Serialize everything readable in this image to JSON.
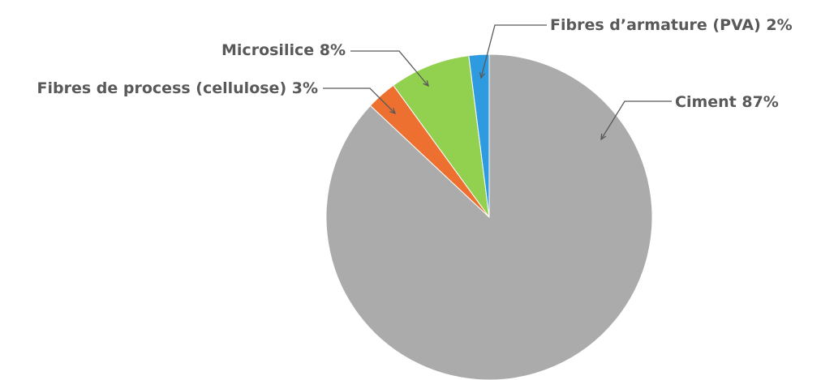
{
  "chart_data": {
    "type": "pie",
    "title": "",
    "slices": [
      {
        "name": "Ciment",
        "value": 87,
        "label": "Ciment 87%",
        "color": "#ABABAB"
      },
      {
        "name": "Fibres de process (cellulose)",
        "value": 3,
        "label": "Fibres de process (cellulose) 3%",
        "color": "#ED7031"
      },
      {
        "name": "Microsilice",
        "value": 8,
        "label": "Microsilice 8%",
        "color": "#92D050"
      },
      {
        "name": "Fibres d’armature (PVA)",
        "value": 2,
        "label": "Fibres d’armature (PVA) 2%",
        "color": "#2E9BE0"
      }
    ],
    "legend": "none",
    "labels": "outside with leader lines"
  }
}
